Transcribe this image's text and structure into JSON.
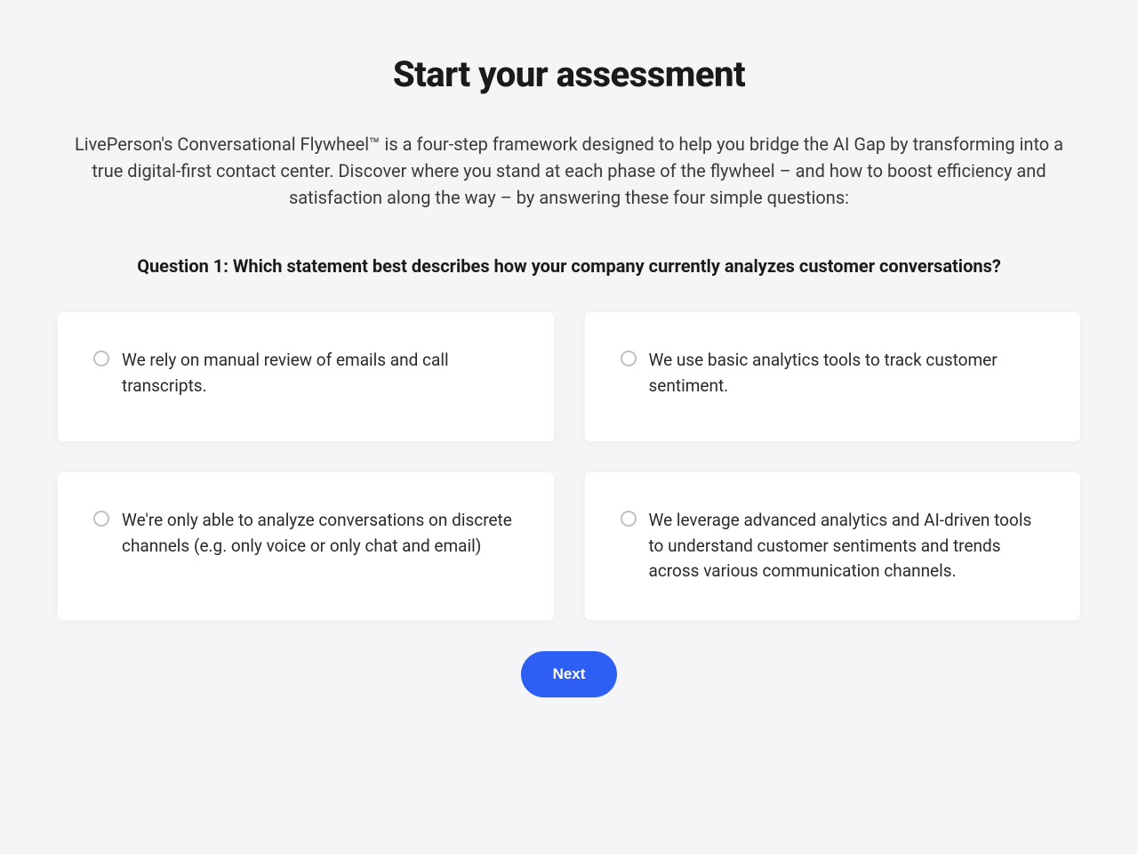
{
  "heading": "Start your assessment",
  "description": "LivePerson's Conversational Flywheel™ is a four-step framework designed to help you bridge the AI Gap by transforming into a true digital-first contact center. Discover where you stand at each phase of the flywheel – and how to boost efficiency and satisfaction along the way – by answering these four simple questions:",
  "question": "Question 1: Which statement best describes how your company currently analyzes customer conversations?",
  "options": [
    "We rely on manual review of emails and call transcripts.",
    "We use basic analytics tools to track customer sentiment.",
    "We're only able to analyze conversations on discrete channels (e.g. only voice or only chat and email)",
    "We leverage advanced analytics and AI-driven tools to understand customer sentiments and trends across various communication channels."
  ],
  "nextButton": "Next",
  "colors": {
    "background": "#f5f5f7",
    "cardBackground": "#ffffff",
    "textPrimary": "#1a1a1a",
    "textSecondary": "#3a3a3a",
    "buttonBackground": "#2d5ff5",
    "buttonText": "#ffffff",
    "radioBorder": "#c0c0c0"
  }
}
